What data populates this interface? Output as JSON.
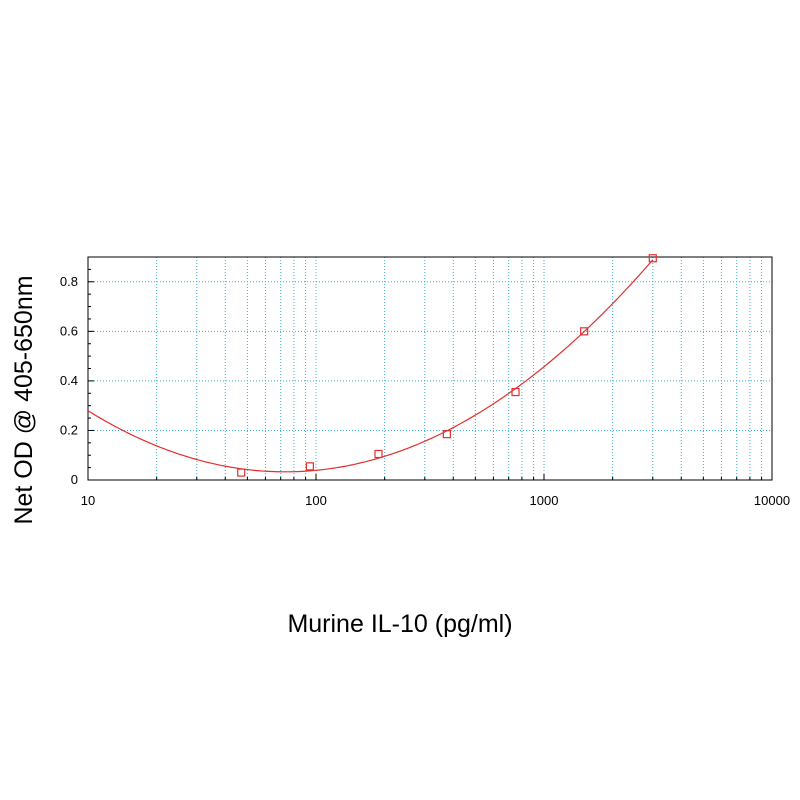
{
  "chart_data": {
    "type": "scatter",
    "title": "",
    "xlabel": "Murine IL-10 (pg/ml)",
    "ylabel": "Net OD @ 405-650nm",
    "x_scale": "log",
    "xlim": [
      10,
      10000
    ],
    "ylim": [
      0,
      0.9
    ],
    "x_ticks": [
      10,
      100,
      1000,
      10000
    ],
    "x_tick_labels": [
      "10",
      "100",
      "1000",
      "10000"
    ],
    "y_ticks": [
      0,
      0.2,
      0.4,
      0.6,
      0.8
    ],
    "y_tick_labels": [
      "0",
      "0.2",
      "0.4",
      "0.6",
      "0.8"
    ],
    "grid": true,
    "legend": "none",
    "series": [
      {
        "color": "#e03030",
        "marker": "square",
        "fit_line": true,
        "x": [
          47,
          94,
          188,
          375,
          750,
          1500,
          3000
        ],
        "y": [
          0.03,
          0.055,
          0.105,
          0.185,
          0.355,
          0.6,
          0.895
        ]
      }
    ],
    "colors": {
      "grid": "#3fb1cc",
      "frame": "#000000",
      "series": "#e03030"
    }
  }
}
